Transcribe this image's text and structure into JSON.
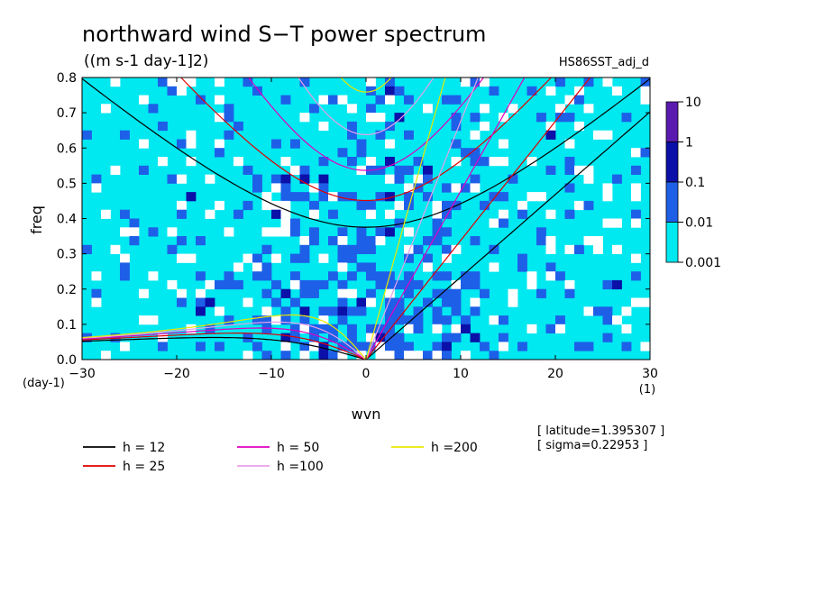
{
  "chart_data": {
    "type": "heatmap",
    "title": "northward wind S−T power spectrum",
    "subtitle": "((m s-1 day-1]2)",
    "experiment": "HS86SST_adj_d",
    "xlabel": "wvn",
    "ylabel": "freq",
    "x_unit": "(1)",
    "y_unit": "(day-1)",
    "xlim": [
      -30,
      30
    ],
    "ylim": [
      0,
      0.8
    ],
    "x_ticks": [
      "−30",
      "−20",
      "−10",
      "0",
      "10",
      "20",
      "30"
    ],
    "y_ticks": [
      "0.0",
      "0.1",
      "0.2",
      "0.3",
      "0.4",
      "0.5",
      "0.6",
      "0.7",
      "0.8"
    ],
    "colorbar": {
      "levels": [
        "10",
        "1",
        "0.1",
        "0.01",
        "0.001"
      ],
      "colors": [
        "#5a1ab0",
        "#0b10a8",
        "#1e5fe8",
        "#00e8f0"
      ]
    },
    "background_colors": {
      "white": "#ffffff",
      "cyan": "#00e8f0",
      "blue": "#1e5fe8",
      "dark": "#0b10a8"
    },
    "equivalent_depths": [
      {
        "label": "h = 12",
        "h": 12,
        "color": "#000000"
      },
      {
        "label": "h = 25",
        "h": 25,
        "color": "#e00000"
      },
      {
        "label": "h = 50",
        "h": 50,
        "color": "#e000c0"
      },
      {
        "label": "h =100",
        "h": 100,
        "color": "#e8a0e8"
      },
      {
        "label": "h =200",
        "h": 200,
        "color": "#e8e800"
      }
    ],
    "info": [
      "[ latitude=1.395307 ]",
      "[ sigma=0.22953 ]"
    ]
  }
}
